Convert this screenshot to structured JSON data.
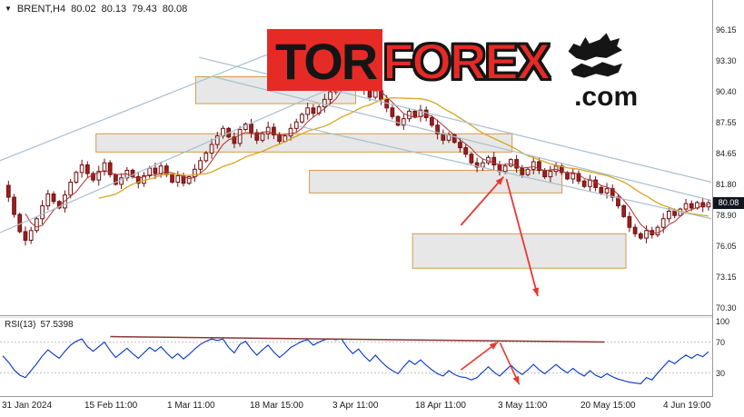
{
  "header": {
    "icon": "▼",
    "symbol": "BRENT,H4",
    "open": "80.02",
    "high": "80.13",
    "low": "79.43",
    "close": "80.08"
  },
  "watermark": {
    "tor": "TOR",
    "forex": "FOREX",
    "com": ".com"
  },
  "price_axis": {
    "current_price": "80.08"
  },
  "rsi": {
    "name": "RSI(13)",
    "value": "57.5398"
  },
  "colors": {
    "candle_up": "#ffffff",
    "candle_down": "#9c1f1f",
    "candle_border": "#6e0f0f",
    "ma_fast": "#b03030",
    "ma_slow": "#d9a520",
    "channel": "#a9bfce",
    "zone_fill": "rgba(170,170,170,0.28)",
    "zone_border": "#d39a4e",
    "arrow": "#e8372f",
    "rsi_line": "#0033cc",
    "rsi_trend": "#8b3636",
    "badge_bg": "#10161e",
    "axis_line": "#9a9a9a",
    "logo_red": "#e62a26",
    "logo_black": "#151515"
  },
  "chart_data": {
    "type": "candlestick",
    "title": "BRENT H4 price chart with forecast arrows and RSI(13)",
    "symbol": "BRENT",
    "timeframe": "H4",
    "ylim": [
      70.3,
      96.15
    ],
    "x_axis_labels": [
      "31 Jan 2024",
      "15 Feb 11:00",
      "1 Mar 11:00",
      "18 Mar 15:00",
      "3 Apr 11:00",
      "18 Apr 11:00",
      "3 May 11:00",
      "20 May 15:00",
      "4 Jun 19:00"
    ],
    "price_axis_ticks": [
      "96.15",
      "93.30",
      "90.40",
      "87.55",
      "84.65",
      "81.80",
      "78.90",
      "76.05",
      "73.15",
      "70.30"
    ],
    "current_price": 80.08,
    "closes": [
      81.7,
      80.6,
      79.0,
      77.4,
      76.6,
      77.5,
      78.6,
      79.8,
      80.9,
      80.2,
      79.6,
      80.8,
      82.0,
      82.9,
      83.6,
      82.8,
      82.2,
      83.0,
      83.8,
      82.7,
      81.8,
      82.4,
      83.1,
      82.5,
      81.9,
      82.6,
      83.3,
      82.8,
      83.5,
      82.7,
      82.0,
      82.6,
      81.9,
      82.5,
      83.2,
      84.0,
      84.7,
      85.5,
      86.3,
      87.0,
      86.2,
      85.6,
      86.9,
      87.4,
      86.6,
      85.9,
      86.5,
      87.1,
      86.4,
      85.8,
      86.3,
      87.0,
      87.6,
      88.3,
      88.9,
      88.4,
      89.0,
      89.7,
      90.4,
      91.2,
      92.3,
      91.5,
      90.8,
      91.4,
      90.6,
      89.9,
      90.5,
      89.7,
      88.9,
      88.1,
      87.3,
      87.9,
      88.6,
      88.1,
      88.7,
      88.0,
      87.3,
      86.5,
      85.9,
      86.4,
      85.7,
      85.2,
      84.6,
      83.8,
      83.4,
      83.8,
      84.3,
      83.6,
      83.0,
      83.5,
      84.1,
      83.3,
      82.7,
      83.2,
      83.9,
      83.1,
      82.5,
      83.0,
      83.5,
      82.9,
      82.3,
      82.8,
      82.1,
      81.6,
      82.2,
      81.5,
      81.0,
      81.4,
      80.6,
      79.8,
      78.8,
      77.8,
      77.2,
      76.8,
      77.5,
      77.1,
      77.8,
      78.6,
      79.3,
      78.9,
      79.5,
      80.0,
      79.6,
      80.1,
      79.7,
      80.08
    ],
    "indicators": {
      "rsi_period": 13,
      "rsi_current": 57.5398
    },
    "rsi_values": [
      52,
      44,
      34,
      27,
      24,
      33,
      42,
      52,
      60,
      54,
      49,
      58,
      66,
      71,
      74,
      64,
      58,
      64,
      70,
      59,
      50,
      56,
      62,
      55,
      49,
      56,
      63,
      58,
      64,
      56,
      49,
      55,
      48,
      54,
      61,
      67,
      71,
      74,
      72,
      74,
      63,
      56,
      67,
      71,
      61,
      53,
      60,
      66,
      57,
      50,
      56,
      63,
      67,
      71,
      73,
      66,
      70,
      73,
      74,
      73,
      74,
      63,
      55,
      61,
      52,
      45,
      53,
      45,
      38,
      33,
      29,
      38,
      46,
      41,
      47,
      40,
      34,
      29,
      26,
      33,
      28,
      25,
      24,
      21,
      24,
      31,
      38,
      31,
      26,
      33,
      40,
      33,
      28,
      34,
      41,
      34,
      29,
      35,
      41,
      35,
      30,
      36,
      30,
      26,
      33,
      27,
      24,
      29,
      25,
      22,
      20,
      18,
      17,
      16,
      24,
      21,
      30,
      38,
      46,
      42,
      48,
      53,
      49,
      54,
      51,
      57.5
    ],
    "rsi_levels": [
      70,
      30
    ],
    "rsi_axis_labels": [
      {
        "text": "100",
        "v": 100
      },
      {
        "text": "70",
        "v": 70
      },
      {
        "text": "30",
        "v": 30
      }
    ],
    "trend_lines": [
      {
        "x1": 0.0,
        "p1": 84.0,
        "x2": 0.4,
        "p2": 94.5
      },
      {
        "x1": 0.0,
        "p1": 77.3,
        "x2": 0.52,
        "p2": 92.3
      },
      {
        "x1": 0.28,
        "p1": 93.6,
        "x2": 1.0,
        "p2": 82.0
      },
      {
        "x1": 0.3,
        "p1": 91.8,
        "x2": 1.0,
        "p2": 80.3
      },
      {
        "x1": 0.42,
        "p1": 87.2,
        "x2": 1.0,
        "p2": 78.6
      }
    ],
    "zones": [
      {
        "x1": 0.275,
        "x2": 0.5,
        "p1": 89.3,
        "p2": 91.8
      },
      {
        "x1": 0.135,
        "x2": 0.72,
        "p1": 84.8,
        "p2": 86.5
      },
      {
        "x1": 0.435,
        "x2": 0.79,
        "p1": 81.0,
        "p2": 83.1
      },
      {
        "x1": 0.58,
        "x2": 0.88,
        "p1": 74.0,
        "p2": 77.2
      }
    ],
    "arrows": [
      {
        "x1": 0.648,
        "p1": 78.0,
        "x2": 0.708,
        "p2": 82.5,
        "head": true
      },
      {
        "x1": 0.712,
        "p1": 82.3,
        "x2": 0.756,
        "p2": 71.4,
        "head": true
      }
    ],
    "rsi_trendline": {
      "x1": 0.155,
      "v1": 77,
      "x2": 0.85,
      "v2": 70
    },
    "rsi_arrows": [
      {
        "x1": 0.648,
        "v1": 34,
        "x2": 0.7,
        "v2": 70,
        "head": true
      },
      {
        "x1": 0.703,
        "v1": 69,
        "x2": 0.73,
        "v2": 15,
        "head": true
      }
    ]
  }
}
